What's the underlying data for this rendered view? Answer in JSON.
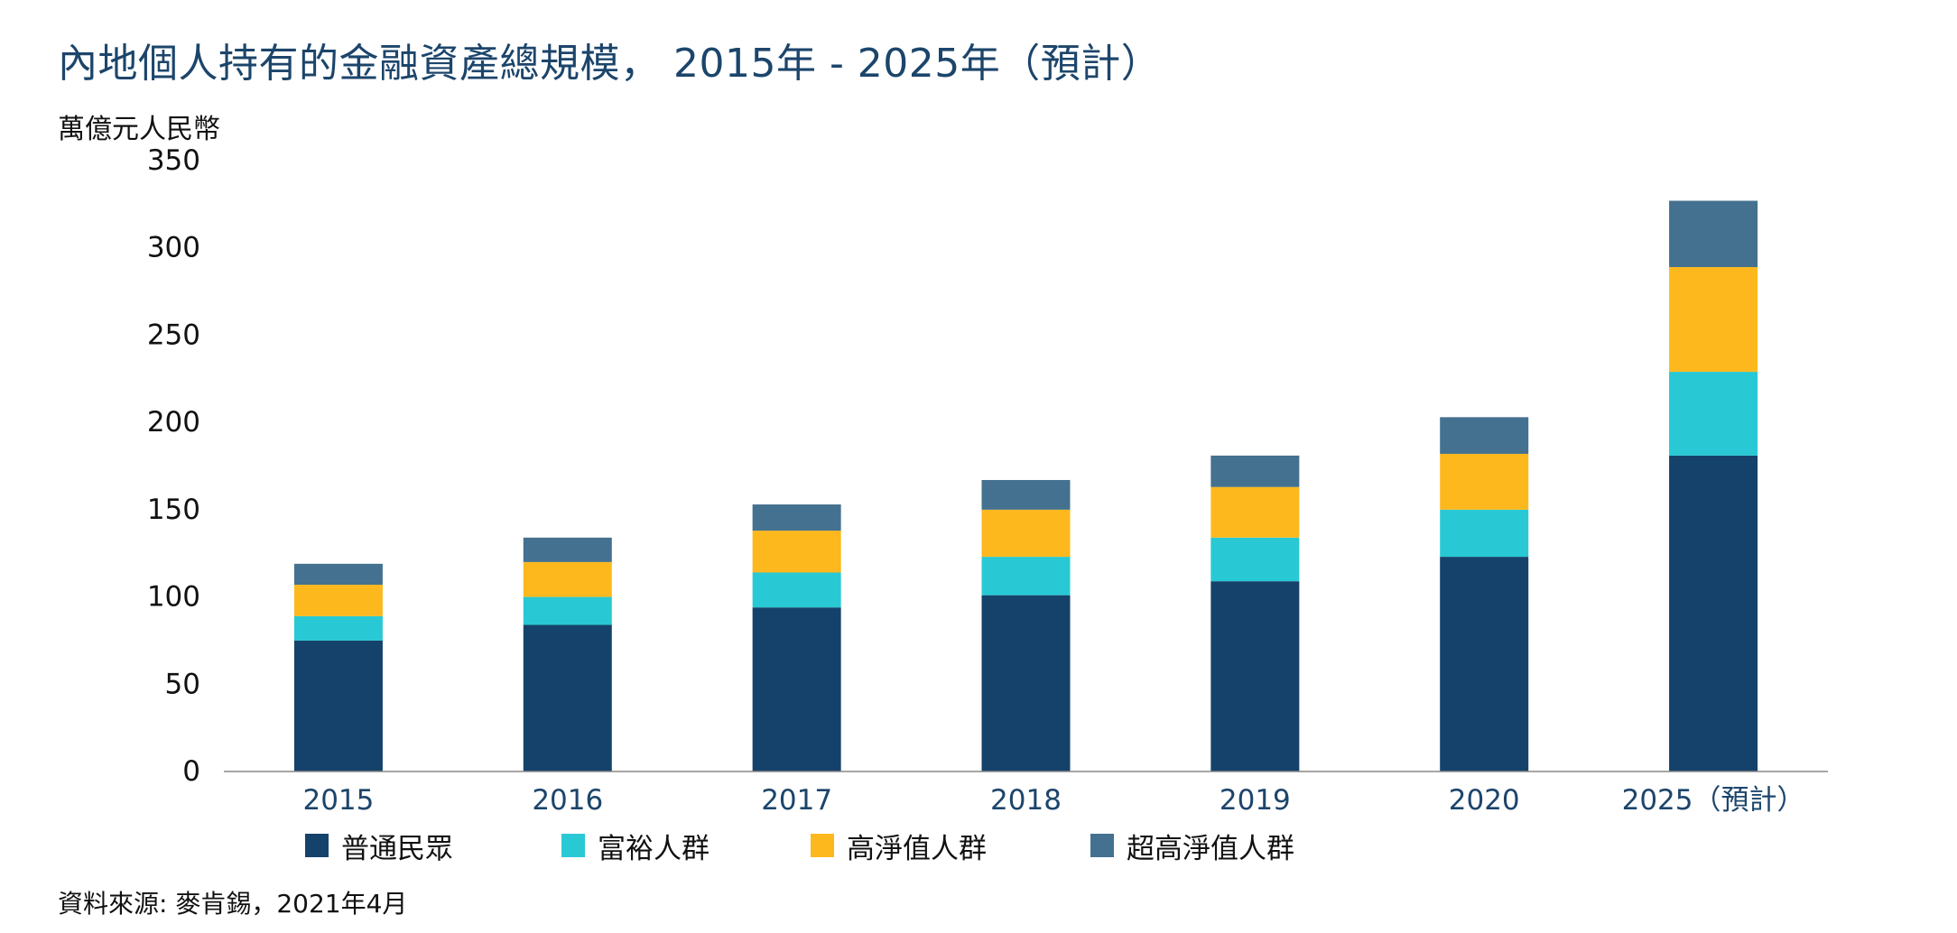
{
  "title": "內地個人持有的金融資產總規模， 2015年 - 2025年（預計）",
  "y_unit": "萬億元人民幣",
  "source": "資料來源: 麥肯錫，2021年4月",
  "colors": {
    "mass": "#15426a",
    "affluent": "#28c9d4",
    "hnw": "#fdb81e",
    "uhnw": "#44718f",
    "title": "#1c456b",
    "axis": "#888888"
  },
  "chart_data": {
    "type": "bar",
    "stacked": true,
    "title": "內地個人持有的金融資產總規模， 2015年 - 2025年（預計）",
    "ylabel": "萬億元人民幣",
    "xlabel": "",
    "ylim": [
      0,
      350
    ],
    "yticks": [
      0,
      50,
      100,
      150,
      200,
      250,
      300,
      350
    ],
    "grid": false,
    "legend_position": "bottom",
    "categories": [
      "2015",
      "2016",
      "2017",
      "2018",
      "2019",
      "2020",
      "2025（預計）"
    ],
    "series": [
      {
        "name": "普通民眾",
        "color": "#15426a",
        "values": [
          75,
          84,
          94,
          101,
          109,
          123,
          181
        ]
      },
      {
        "name": "富裕人群",
        "color": "#28c9d4",
        "values": [
          14,
          16,
          20,
          22,
          25,
          27,
          48
        ]
      },
      {
        "name": "高淨值人群",
        "color": "#fdb81e",
        "values": [
          18,
          20,
          24,
          27,
          29,
          32,
          60
        ]
      },
      {
        "name": "超高淨值人群",
        "color": "#44718f",
        "values": [
          12,
          14,
          15,
          17,
          18,
          21,
          38
        ]
      }
    ]
  }
}
